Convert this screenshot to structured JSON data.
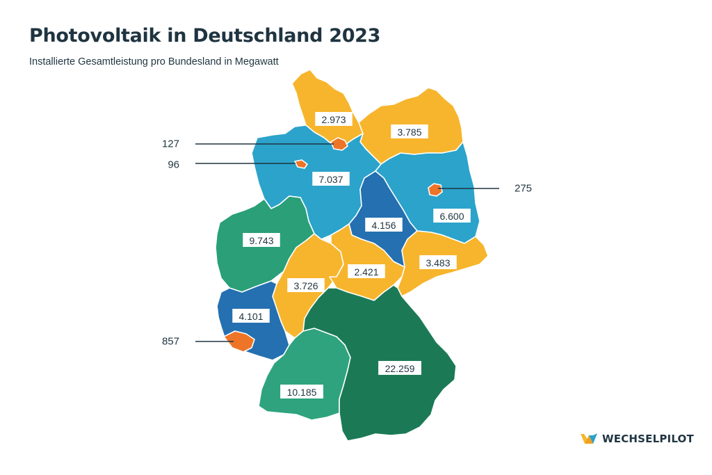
{
  "title": "Photovoltaik in Deutschland 2023",
  "subtitle": "Installierte Gesamtleistung pro Bundesland in Megawatt",
  "brand": {
    "name": "WECHSELPILOT",
    "logo_icon": "wechselpilot-logo-icon",
    "logo_colors": [
      "#f7b52c",
      "#2aa1c9"
    ]
  },
  "colors": {
    "light_blue": "#2ba3cb",
    "dark_blue": "#2470b1",
    "yellow": "#f7b52d",
    "orange": "#ee7527",
    "green": "#2a9f78",
    "light_green": "#2ea37e",
    "dark_green": "#1b7a55"
  },
  "states": [
    {
      "id": "schleswig-holstein",
      "value": "2.973",
      "color": "yellow"
    },
    {
      "id": "mecklenburg-vorpommern",
      "value": "3.785",
      "color": "yellow"
    },
    {
      "id": "niedersachsen",
      "value": "7.037",
      "color": "light_blue"
    },
    {
      "id": "brandenburg",
      "value": "6.600",
      "color": "light_blue"
    },
    {
      "id": "sachsen-anhalt",
      "value": "4.156",
      "color": "dark_blue"
    },
    {
      "id": "nordrhein-westfalen",
      "value": "9.743",
      "color": "green"
    },
    {
      "id": "hessen",
      "value": "3.726",
      "color": "yellow"
    },
    {
      "id": "thueringen",
      "value": "2.421",
      "color": "yellow"
    },
    {
      "id": "sachsen",
      "value": "3.483",
      "color": "yellow"
    },
    {
      "id": "rheinland-pfalz",
      "value": "4.101",
      "color": "dark_blue"
    },
    {
      "id": "baden-wuerttemberg",
      "value": "10.185",
      "color": "light_green"
    },
    {
      "id": "bayern",
      "value": "22.259",
      "color": "dark_green"
    }
  ],
  "callouts": [
    {
      "id": "hamburg",
      "value": "127",
      "color": "orange"
    },
    {
      "id": "bremen",
      "value": "96",
      "color": "orange"
    },
    {
      "id": "berlin",
      "value": "275",
      "color": "orange"
    },
    {
      "id": "saarland",
      "value": "857",
      "color": "orange"
    }
  ]
}
